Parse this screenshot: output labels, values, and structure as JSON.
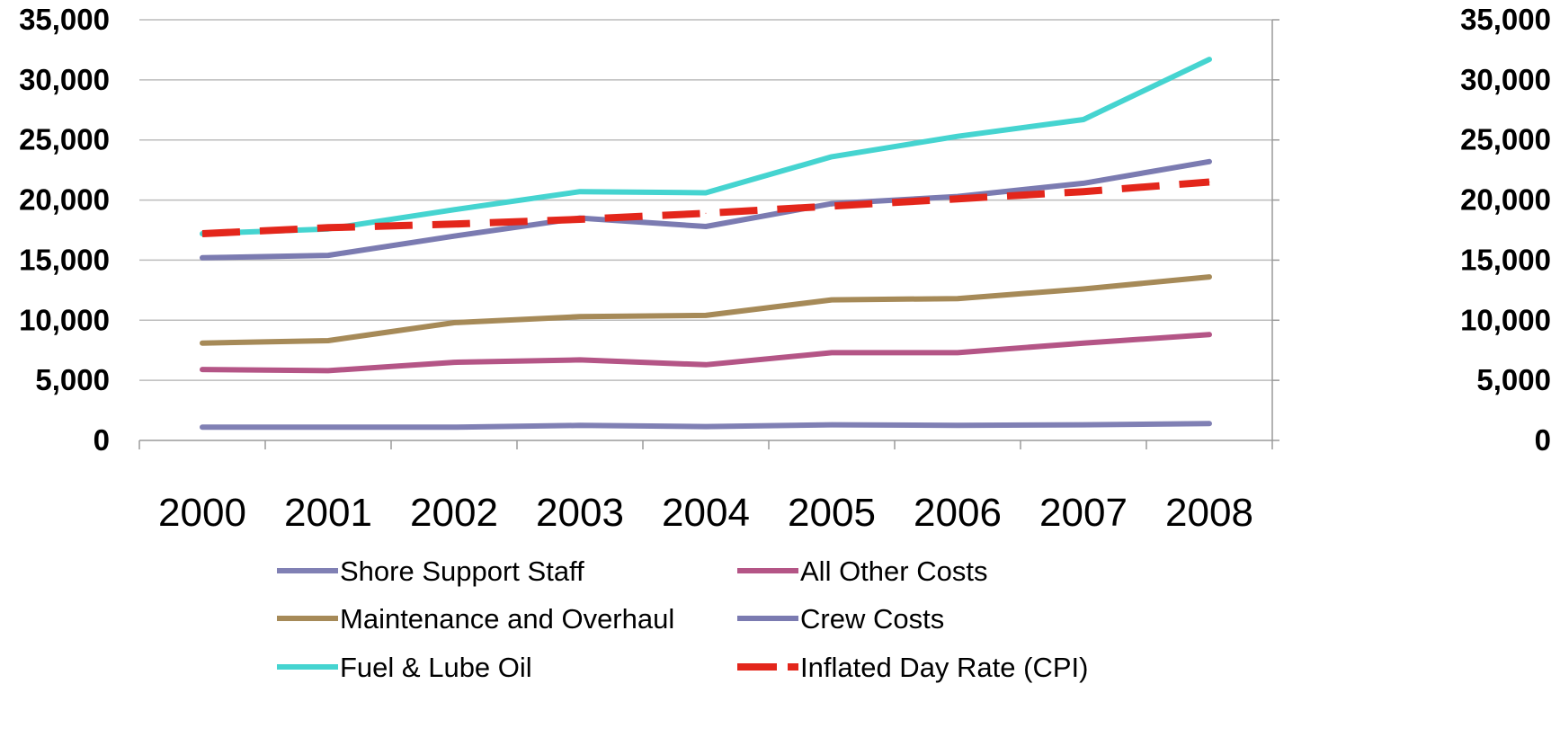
{
  "chart_data": {
    "type": "line",
    "categories": [
      "2000",
      "2001",
      "2002",
      "2003",
      "2004",
      "2005",
      "2006",
      "2007",
      "2008"
    ],
    "ylim": [
      0,
      35000
    ],
    "y_ticks": [
      0,
      5000,
      10000,
      15000,
      20000,
      25000,
      30000,
      35000
    ],
    "y_tick_labels": [
      "0",
      "5,000",
      "10,000",
      "15,000",
      "20,000",
      "25,000",
      "30,000",
      "35,000"
    ],
    "secondary_y_axis": true,
    "grid": true,
    "legend_position": "bottom",
    "series": [
      {
        "name": "Shore Support Staff",
        "color": "#8080b4",
        "dashed": false,
        "values": [
          1100,
          1100,
          1100,
          1250,
          1150,
          1300,
          1250,
          1300,
          1400
        ]
      },
      {
        "name": "All Other Costs",
        "color": "#b45586",
        "dashed": false,
        "values": [
          5900,
          5800,
          6500,
          6700,
          6300,
          7300,
          7300,
          8100,
          8800
        ]
      },
      {
        "name": "Maintenance and Overhaul",
        "color": "#a68a58",
        "dashed": false,
        "values": [
          8100,
          8300,
          9800,
          10300,
          10400,
          11700,
          11800,
          12600,
          13600
        ]
      },
      {
        "name": "Crew Costs",
        "color": "#7b7bb1",
        "dashed": false,
        "values": [
          15200,
          15400,
          17000,
          18500,
          17800,
          19700,
          20300,
          21400,
          23200
        ]
      },
      {
        "name": "Fuel & Lube Oil",
        "color": "#45d4d0",
        "dashed": false,
        "values": [
          17200,
          17600,
          19200,
          20700,
          20600,
          23600,
          25300,
          26700,
          31700
        ]
      },
      {
        "name": "Inflated Day Rate (CPI)",
        "color": "#e3261b",
        "dashed": true,
        "values": [
          17200,
          17700,
          18000,
          18400,
          18900,
          19500,
          20100,
          20700,
          21500
        ]
      }
    ]
  }
}
